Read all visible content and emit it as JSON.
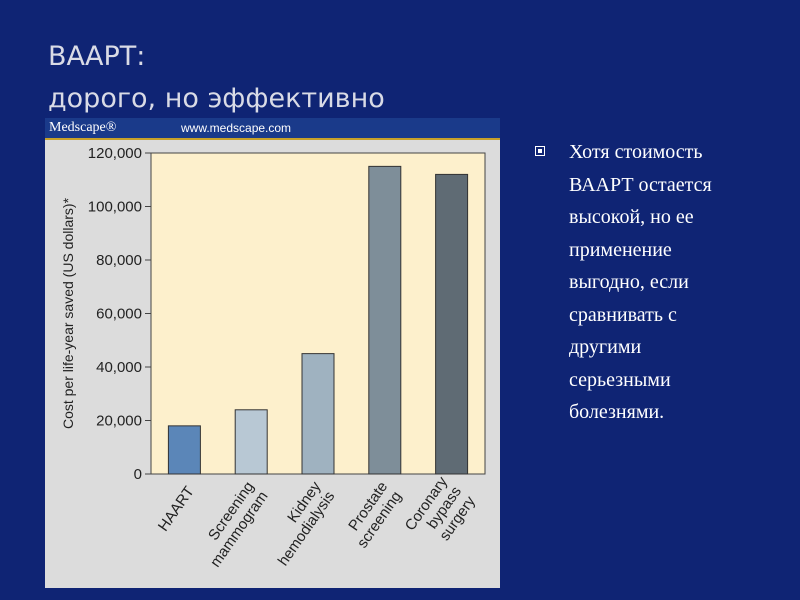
{
  "slide": {
    "title_line1": "ВААРТ:",
    "title_line2": "дорого, но эффективно"
  },
  "chart_header": {
    "brand": "Medscape®",
    "url": "www.medscape.com"
  },
  "chart_data": {
    "type": "bar",
    "categories": [
      [
        "HAART"
      ],
      [
        "Screening",
        "mammogram"
      ],
      [
        "Kidney",
        "hemodialysis"
      ],
      [
        "Prostate",
        "screening"
      ],
      [
        "Coronary",
        "bypass",
        "surgery"
      ]
    ],
    "values": [
      18000,
      24000,
      45000,
      115000,
      112000
    ],
    "bar_colors": [
      "#5b86b8",
      "#b8c8d4",
      "#9fb2c0",
      "#7e8e99",
      "#5f6b74"
    ],
    "ylabel": "Cost per life-year saved (US dollars)*",
    "ylim": [
      0,
      120000
    ],
    "yticks": [
      0,
      20000,
      40000,
      60000,
      80000,
      100000,
      120000
    ],
    "ytick_labels": [
      "0",
      "20,000",
      "40,000",
      "60,000",
      "80,000",
      "100,000",
      "120,000"
    ],
    "plot_background": "#fdf0cc",
    "grid": false,
    "legend": "none"
  },
  "bullets": [
    "Хотя стоимость ВААРТ остается высокой, но ее применение выгодно, если сравнивать с другими серьезными болезнями."
  ],
  "colors": {
    "slide_background": "#0f2474",
    "title_text": "#d9dbe6",
    "panel_background": "#dcdcdc",
    "header_bar": "#1a3a8a",
    "header_accent": "#c7a12a"
  }
}
